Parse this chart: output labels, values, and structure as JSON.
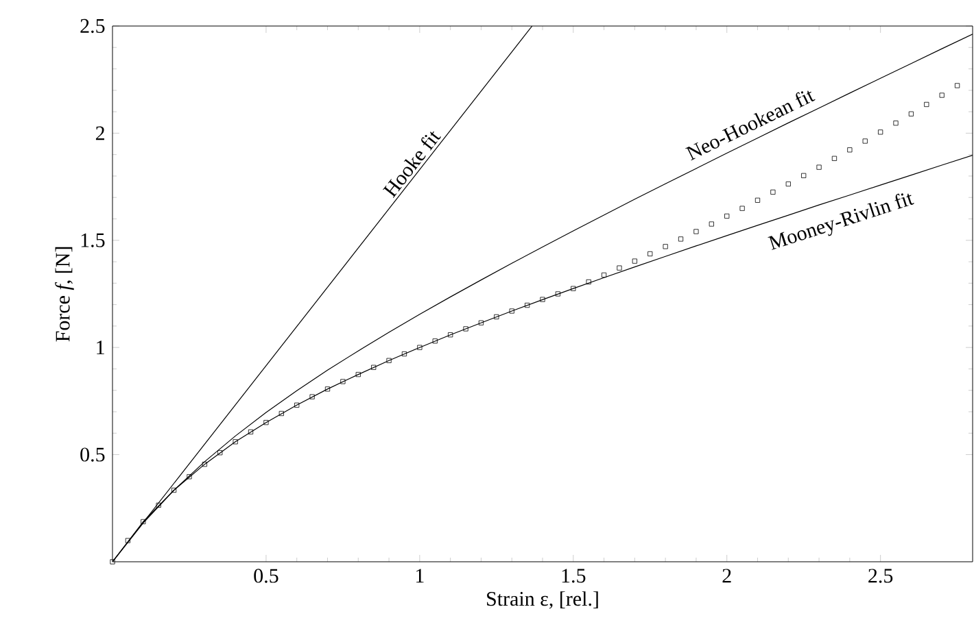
{
  "chart_data": {
    "type": "line",
    "xlabel": "Strain ε, [rel.]",
    "ylabel": "Force *f*, [N]",
    "xlim": [
      0,
      2.8
    ],
    "ylim": [
      0,
      2.5
    ],
    "xticks": [
      0.5,
      1,
      1.5,
      2,
      2.5
    ],
    "yticks": [
      0.5,
      1,
      1.5,
      2,
      2.5
    ],
    "grid": false,
    "legend": false,
    "series": [
      {
        "type": "scatter",
        "marker": "square",
        "color": "#000000",
        "x": [
          0,
          0.05,
          0.1,
          0.15,
          0.2,
          0.25,
          0.3,
          0.35,
          0.4,
          0.45,
          0.5,
          0.55,
          0.6,
          0.65,
          0.7,
          0.75,
          0.8,
          0.85,
          0.9,
          0.95,
          1.0,
          1.05,
          1.1,
          1.15,
          1.2,
          1.25,
          1.3,
          1.35,
          1.4,
          1.45,
          1.5,
          1.55,
          1.6,
          1.65,
          1.7,
          1.75,
          1.8,
          1.85,
          1.9,
          1.95,
          2.0,
          2.05,
          2.1,
          2.15,
          2.2,
          2.25,
          2.3,
          2.35,
          2.4,
          2.45,
          2.5,
          2.55,
          2.6,
          2.65,
          2.7,
          2.75
        ],
        "values": [
          0,
          0.099,
          0.187,
          0.264,
          0.334,
          0.397,
          0.455,
          0.509,
          0.56,
          0.606,
          0.65,
          0.692,
          0.731,
          0.77,
          0.806,
          0.841,
          0.874,
          0.907,
          0.939,
          0.97,
          1.0,
          1.03,
          1.059,
          1.087,
          1.115,
          1.143,
          1.17,
          1.197,
          1.224,
          1.25,
          1.275,
          1.306,
          1.338,
          1.371,
          1.403,
          1.437,
          1.471,
          1.506,
          1.541,
          1.576,
          1.613,
          1.649,
          1.687,
          1.725,
          1.763,
          1.802,
          1.841,
          1.882,
          1.922,
          1.963,
          2.005,
          2.047,
          2.09,
          2.134,
          2.177,
          2.222
        ]
      },
      {
        "name": "Hooke fit",
        "color": "#000000",
        "x": [
          0,
          1.366
        ],
        "values": [
          0,
          2.5
        ]
      },
      {
        "name": "Neo-Hookean fit",
        "color": "#000000",
        "x": [
          0,
          0.1,
          0.2,
          0.3,
          0.4,
          0.5,
          0.6,
          0.7,
          0.8,
          0.9,
          1.0,
          1.1,
          1.2,
          1.3,
          1.4,
          1.5,
          1.6,
          1.7,
          1.8,
          1.9,
          2.0,
          2.1,
          2.2,
          2.3,
          2.4,
          2.5,
          2.6,
          2.7,
          2.8
        ],
        "values": [
          0,
          0.181,
          0.334,
          0.467,
          0.587,
          0.697,
          0.798,
          0.894,
          0.984,
          1.071,
          1.155,
          1.236,
          1.315,
          1.393,
          1.469,
          1.544,
          1.618,
          1.692,
          1.764,
          1.835,
          1.907,
          1.977,
          2.048,
          2.117,
          2.187,
          2.256,
          2.325,
          2.394,
          2.462
        ]
      },
      {
        "name": "Mooney-Rivlin fit",
        "color": "#000000",
        "x": [
          0,
          0.1,
          0.2,
          0.3,
          0.4,
          0.5,
          0.6,
          0.7,
          0.8,
          0.9,
          1.0,
          1.1,
          1.2,
          1.3,
          1.4,
          1.5,
          1.6,
          1.7,
          1.8,
          1.9,
          2.0,
          2.1,
          2.2,
          2.3,
          2.4,
          2.5,
          2.6,
          2.7,
          2.8
        ],
        "values": [
          0,
          0.187,
          0.334,
          0.455,
          0.56,
          0.65,
          0.731,
          0.806,
          0.874,
          0.939,
          1.0,
          1.059,
          1.115,
          1.17,
          1.223,
          1.275,
          1.326,
          1.376,
          1.425,
          1.474,
          1.522,
          1.57,
          1.617,
          1.665,
          1.711,
          1.758,
          1.804,
          1.851,
          1.897
        ]
      }
    ]
  }
}
